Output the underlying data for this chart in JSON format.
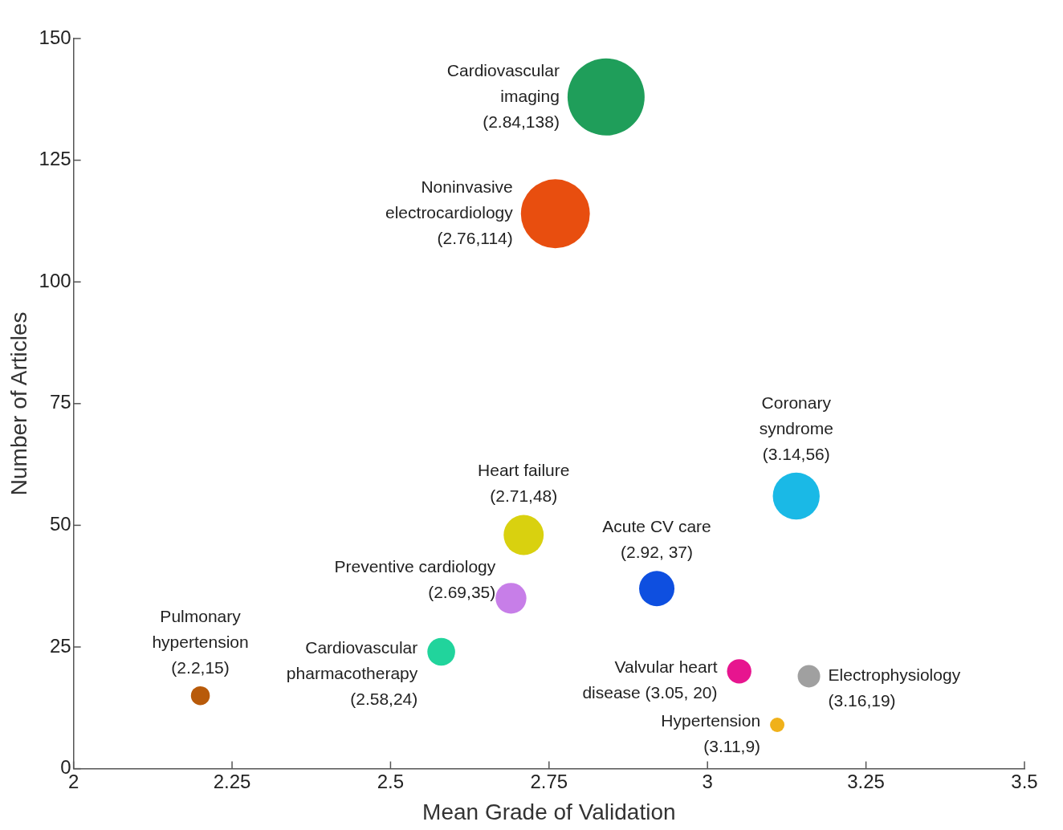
{
  "chart_data": {
    "type": "bubble",
    "xlabel": "Mean Grade of Validation",
    "ylabel": "Number of Articles",
    "x": [
      2.84,
      2.76,
      3.14,
      2.71,
      2.92,
      2.69,
      2.58,
      3.05,
      3.16,
      2.2,
      3.11
    ],
    "values": [
      138,
      114,
      56,
      48,
      37,
      35,
      24,
      20,
      19,
      15,
      9
    ],
    "sizes": [
      1,
      0.8,
      0.37,
      0.27,
      0.21,
      0.16,
      0.13,
      0.1,
      0.085,
      0.06,
      0.035
    ],
    "colors": [
      "#1f9e5a",
      "#e84e0f",
      "#1ab9e6",
      "#d9d10f",
      "#0e4fe0",
      "#c77ee8",
      "#21d49c",
      "#e7158f",
      "#a0a0a0",
      "#b85a0a",
      "#f0b11a"
    ],
    "xlim": [
      2,
      3.5
    ],
    "xticks": [
      2,
      2.25,
      2.5,
      2.75,
      3,
      3.25,
      3.5
    ],
    "ylim": [
      0,
      150
    ],
    "yticks": [
      0,
      25,
      50,
      75,
      100,
      125,
      150
    ],
    "legend": false,
    "grid": false,
    "annotations": [
      {
        "text": "Cardiovascular\nimaging\n(2.84,138)",
        "x": 2.84,
        "y": 138
      },
      {
        "text": "Noninvasive\nelectrocardiology\n(2.76,114)",
        "x": 2.76,
        "y": 114
      },
      {
        "text": "Coronary\nsyndrome\n(3.14,56)",
        "x": 3.14,
        "y": 56
      },
      {
        "text": "Heart failure\n(2.71,48)",
        "x": 2.71,
        "y": 48
      },
      {
        "text": "Acute CV care\n(2.92, 37)",
        "x": 2.92,
        "y": 37
      },
      {
        "text": "Preventive cardiology\n(2.69,35)",
        "x": 2.69,
        "y": 35
      },
      {
        "text": "Cardiovascular\npharmacotherapy\n(2.58,24)",
        "x": 2.58,
        "y": 24
      },
      {
        "text": "Valvular heart\ndisease (3.05, 20)",
        "x": 3.05,
        "y": 20
      },
      {
        "text": "Electrophysiology\n(3.16,19)",
        "x": 3.16,
        "y": 19
      },
      {
        "text": "Pulmonary\nhypertension\n(2.2,15)",
        "x": 2.2,
        "y": 15
      },
      {
        "text": "Hypertension\n(3.11,9)",
        "x": 3.11,
        "y": 9
      }
    ]
  }
}
